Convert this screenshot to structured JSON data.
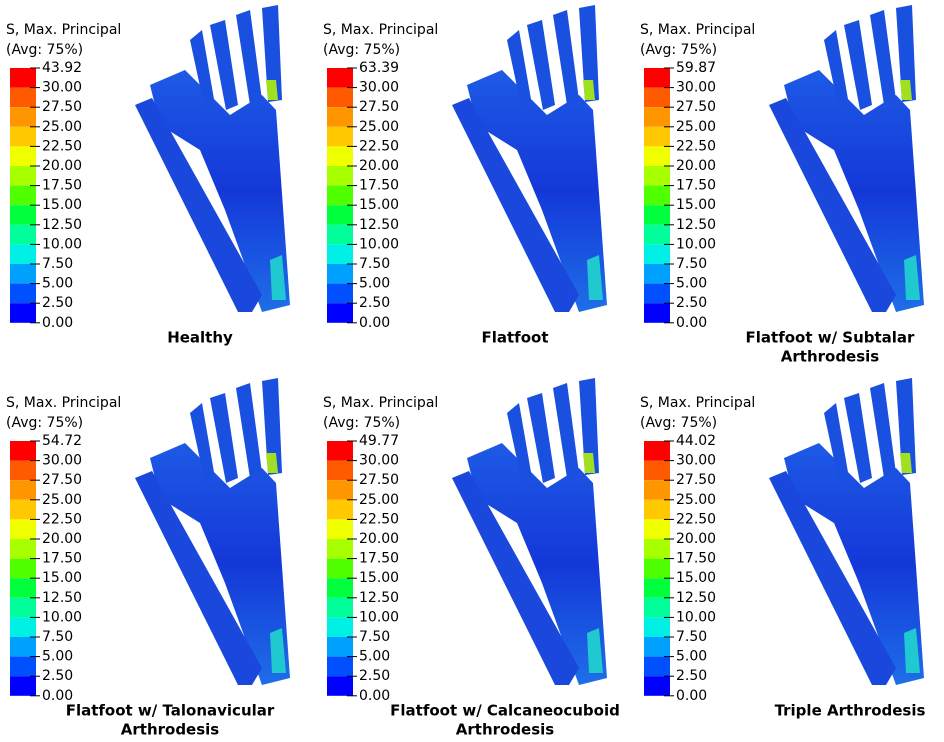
{
  "panels": [
    {
      "legend_title": [
        "S, Max. Principal",
        "(Avg: 75%)"
      ],
      "legend_labels": [
        "43.92",
        "30.00",
        "27.50",
        "25.00",
        "22.50",
        "20.00",
        "17.50",
        "15.00",
        "12.50",
        "10.00",
        "7.50",
        "5.00",
        "2.50",
        "0.00"
      ],
      "caption": [
        "Healthy"
      ]
    },
    {
      "legend_title": [
        "S, Max. Principal",
        "(Avg: 75%)"
      ],
      "legend_labels": [
        "63.39",
        "30.00",
        "27.50",
        "25.00",
        "22.50",
        "20.00",
        "17.50",
        "15.00",
        "12.50",
        "10.00",
        "7.50",
        "5.00",
        "2.50",
        "0.00"
      ],
      "caption": [
        "Flatfoot"
      ]
    },
    {
      "legend_title": [
        "S, Max. Principal",
        "(Avg: 75%)"
      ],
      "legend_labels": [
        "59.87",
        "30.00",
        "27.50",
        "25.00",
        "22.50",
        "20.00",
        "17.50",
        "15.00",
        "12.50",
        "10.00",
        "7.50",
        "5.00",
        "2.50",
        "0.00"
      ],
      "caption": [
        "Flatfoot w/ Subtalar",
        "Arthrodesis"
      ]
    },
    {
      "legend_title": [
        "S, Max. Principal",
        "(Avg: 75%)"
      ],
      "legend_labels": [
        "54.72",
        "30.00",
        "27.50",
        "25.00",
        "22.50",
        "20.00",
        "17.50",
        "15.00",
        "12.50",
        "10.00",
        "7.50",
        "5.00",
        "2.50",
        "0.00"
      ],
      "caption": [
        "Flatfoot w/ Talonavicular",
        "Arthrodesis"
      ]
    },
    {
      "legend_title": [
        "S, Max. Principal",
        "(Avg: 75%)"
      ],
      "legend_labels": [
        "49.77",
        "30.00",
        "27.50",
        "25.00",
        "22.50",
        "20.00",
        "17.50",
        "15.00",
        "12.50",
        "10.00",
        "7.50",
        "5.00",
        "2.50",
        "0.00"
      ],
      "caption": [
        "Flatfoot w/ Calcaneocuboid",
        "Arthrodesis"
      ]
    },
    {
      "legend_title": [
        "S, Max. Principal",
        "(Avg: 75%)"
      ],
      "legend_labels": [
        "44.02",
        "30.00",
        "27.50",
        "25.00",
        "22.50",
        "20.00",
        "17.50",
        "15.00",
        "12.50",
        "10.00",
        "7.50",
        "5.00",
        "2.50",
        "0.00"
      ],
      "caption": [
        "Triple Arthrodesis"
      ]
    }
  ]
}
